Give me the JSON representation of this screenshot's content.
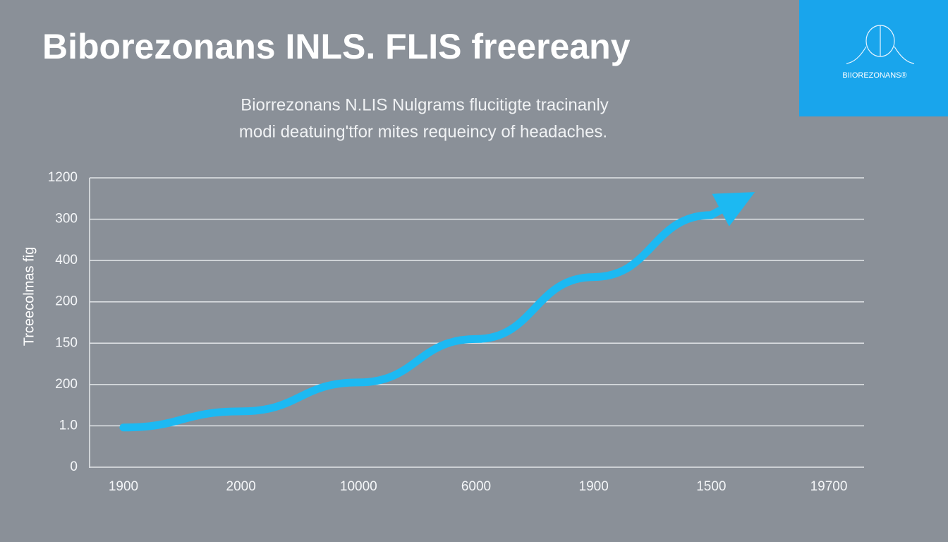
{
  "chart_data": {
    "type": "line",
    "title": "Biborezonans  INLS. FLIS freereany",
    "subtitle": [
      "Biorrezonans N.LIS Nulgrams flucitigte tracinanly",
      "modi deatuingʹtfor mites requeincy of headaches."
    ],
    "logo_text": "BIIOREZONANS®",
    "y_label": "Trceecolmas fig",
    "categories": [
      "1900",
      "2000",
      "10000",
      "6000",
      "1900",
      "1500",
      "19700"
    ],
    "series": [
      {
        "name": "trend",
        "color": "#1cb9f2",
        "values": [
          0.96,
          1.35,
          2.05,
          3.1,
          4.6,
          6.1,
          null
        ]
      }
    ],
    "ylim": [
      0,
      7
    ],
    "yticks": [
      {
        "value": 0,
        "label": "0"
      },
      {
        "value": 1,
        "label": "1.0"
      },
      {
        "value": 2,
        "label": "200"
      },
      {
        "value": 3,
        "label": "150"
      },
      {
        "value": 4,
        "label": "200"
      },
      {
        "value": 5,
        "label": "400"
      },
      {
        "value": 6,
        "label": "300"
      },
      {
        "value": 7,
        "label": "1200"
      }
    ],
    "grid": true
  }
}
